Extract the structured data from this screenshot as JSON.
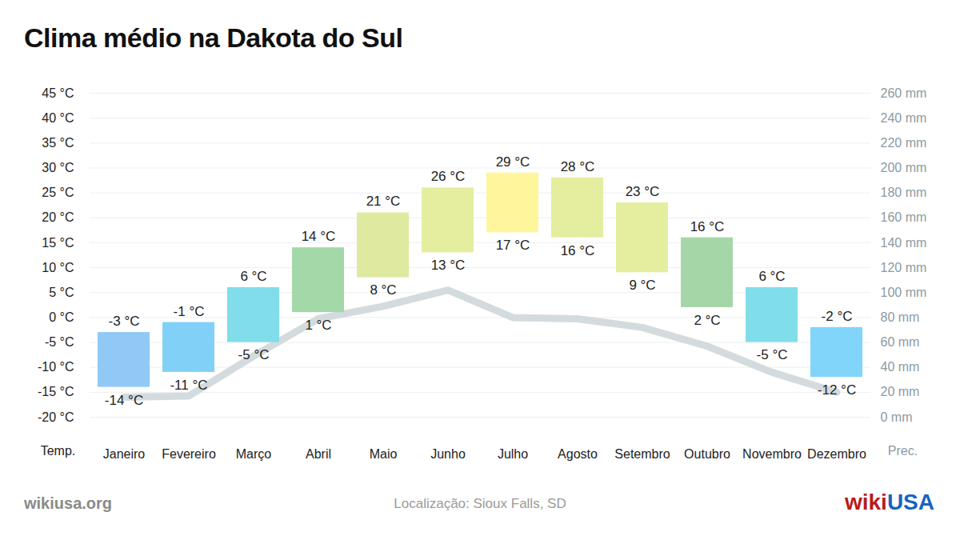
{
  "chart_data": {
    "type": "range_bar",
    "title": "Clima médio na Dakota do Sul",
    "source": "wikiusa.org",
    "note": "Localização: Sioux Falls, SD",
    "brand": "wikiUSA",
    "categories": [
      "Janeiro",
      "Fevereiro",
      "Março",
      "Abril",
      "Maio",
      "Junho",
      "Julho",
      "Agosto",
      "Setembro",
      "Outubro",
      "Novembro",
      "Dezembro"
    ],
    "ylabel": "Temp.",
    "y2label": "Prec.",
    "ylim": [
      -20,
      45
    ],
    "yticks": [
      {
        "value": -20,
        "label": "-20 °C"
      },
      {
        "value": -15,
        "label": "-15 °C"
      },
      {
        "value": -10,
        "label": "-10 °C"
      },
      {
        "value": -5,
        "label": "-5 °C"
      },
      {
        "value": 0,
        "label": "0 °C"
      },
      {
        "value": 5,
        "label": "5 °C"
      },
      {
        "value": 10,
        "label": "10 °C"
      },
      {
        "value": 15,
        "label": "15 °C"
      },
      {
        "value": 20,
        "label": "20 °C"
      },
      {
        "value": 25,
        "label": "25 °C"
      },
      {
        "value": 30,
        "label": "30 °C"
      },
      {
        "value": 35,
        "label": "35 °C"
      },
      {
        "value": 40,
        "label": "40 °C"
      },
      {
        "value": 45,
        "label": "45 °C"
      }
    ],
    "y2lim": [
      0,
      260
    ],
    "y2ticks": [
      {
        "value": 0,
        "label": "0 mm"
      },
      {
        "value": 20,
        "label": "20 mm"
      },
      {
        "value": 40,
        "label": "40 mm"
      },
      {
        "value": 60,
        "label": "60 mm"
      },
      {
        "value": 80,
        "label": "80 mm"
      },
      {
        "value": 100,
        "label": "100 mm"
      },
      {
        "value": 120,
        "label": "120 mm"
      },
      {
        "value": 140,
        "label": "140 mm"
      },
      {
        "value": 160,
        "label": "160 mm"
      },
      {
        "value": 180,
        "label": "180 mm"
      },
      {
        "value": 200,
        "label": "200 mm"
      },
      {
        "value": 220,
        "label": "220 mm"
      },
      {
        "value": 240,
        "label": "240 mm"
      },
      {
        "value": 260,
        "label": "260 mm"
      }
    ],
    "grid": true,
    "data_labels": true,
    "series": [
      {
        "type": "range_bar",
        "low": [
          -14,
          -11,
          -5,
          1,
          8,
          13,
          17,
          16,
          9,
          2,
          -5,
          -12
        ],
        "high": [
          -3,
          -1,
          6,
          14,
          21,
          26,
          29,
          28,
          23,
          16,
          6,
          -2
        ],
        "low_value_labels": [
          "-14 °C",
          "-11 °C",
          "-5 °C",
          "1 °C",
          "8 °C",
          "13 °C",
          "17 °C",
          "16 °C",
          "9 °C",
          "2 °C",
          "-5 °C",
          "-12 °C"
        ],
        "high_value_labels": [
          "-3 °C",
          "-1 °C",
          "6 °C",
          "14 °C",
          "21 °C",
          "26 °C",
          "29 °C",
          "28 °C",
          "23 °C",
          "16 °C",
          "6 °C",
          "-2 °C"
        ],
        "colors": [
          "#90c8f6",
          "#81d0f8",
          "#80dde9",
          "#a3d9a8",
          "#dfeaa0",
          "#e4ee9e",
          "#fff59d",
          "#e4ee9e",
          "#e4ee9e",
          "#a5d6a7",
          "#80deea",
          "#81d4fa"
        ]
      },
      {
        "type": "line",
        "axis": "y2",
        "color": "#d4dbdf",
        "values": [
          16,
          17,
          49,
          79,
          89,
          102,
          80,
          79,
          72,
          57,
          36,
          20
        ]
      }
    ]
  }
}
